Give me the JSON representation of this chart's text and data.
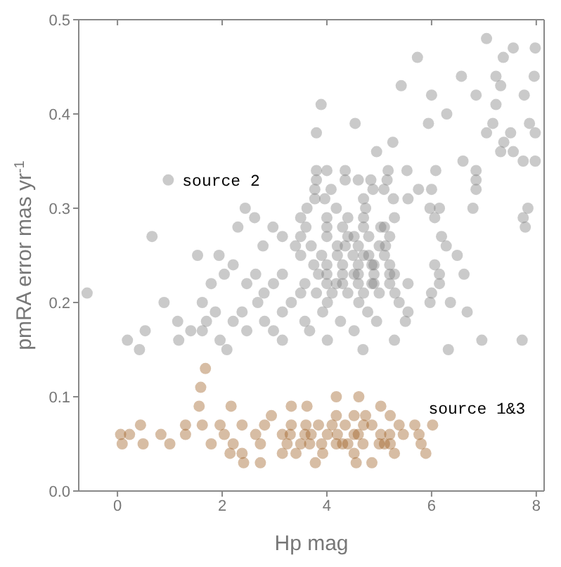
{
  "chart_data": {
    "type": "scatter",
    "xlabel": "Hp mag",
    "ylabel": "pmRA error  mas yr$^{-1}$",
    "xlim": [
      -0.74,
      8.15
    ],
    "xticks": [
      0,
      2,
      4,
      6,
      8
    ],
    "ylim": [
      0,
      0.5
    ],
    "yticks": [
      {
        "value": 0,
        "label": "0.0"
      },
      0.1,
      0.2,
      0.3,
      0.4,
      0.5
    ],
    "marker": "circle",
    "legend": false,
    "series": [
      {
        "name": "source 2",
        "color": "#7a7a7a",
        "x": [
          0.97,
          7.05,
          5.73,
          7.37,
          7.56,
          7.98,
          6.57,
          7.23,
          7.96,
          5.42,
          7.32,
          6.0,
          6.85,
          7.77,
          3.89,
          7.23,
          6.29,
          4.54,
          5.94,
          7.17,
          7.87,
          3.8,
          7.05,
          7.51,
          7.98,
          5.26,
          7.38,
          4.95,
          7.32,
          7.56,
          6.6,
          7.75,
          7.98,
          3.8,
          4.0,
          4.35,
          5.17,
          5.53,
          6.08,
          6.85,
          3.8,
          4.35,
          4.6,
          4.84,
          5.15,
          6.85,
          3.77,
          4.08,
          4.88,
          5.09,
          5.75,
          6.0,
          6.85,
          3.77,
          3.96,
          4.7,
          5.27,
          5.55,
          2.44,
          3.62,
          4.18,
          4.74,
          5.97,
          6.15,
          6.79,
          7.84,
          2.62,
          3.5,
          4.4,
          5.29,
          6.06,
          7.75,
          2.3,
          2.97,
          4.0,
          5.03,
          7.79,
          0.66,
          3.15,
          4.52,
          6.19,
          2.78,
          3.4,
          4.35,
          5.12,
          6.28,
          1.53,
          1.94,
          3.5,
          4.7,
          6.49,
          2.21,
          3.75,
          4.86,
          6.06,
          -0.58,
          2.04,
          2.64,
          3.15,
          3.84,
          4.52,
          5.29,
          6.15,
          6.62,
          1.79,
          2.47,
          2.98,
          3.58,
          4.18,
          4.86,
          5.55,
          6.15,
          0.89,
          1.62,
          2.68,
          3.32,
          4.01,
          4.61,
          5.38,
          5.97,
          6.36,
          1.87,
          2.38,
          3.15,
          3.92,
          4.78,
          5.55,
          6.68,
          1.15,
          1.7,
          2.21,
          2.81,
          3.58,
          4.26,
          4.95,
          5.5,
          0.53,
          1.4,
          1.62,
          2.47,
          2.98,
          3.67,
          4.52,
          0.19,
          1.17,
          1.96,
          3.15,
          4.01,
          5.29,
          6.96,
          7.73,
          0.42,
          2.09,
          4.69,
          6.32,
          3.5,
          3.8,
          4.1,
          4.4,
          4.7,
          5.0,
          5.3,
          2.8,
          6.0,
          4.0,
          4.3,
          4.6,
          4.9,
          5.2,
          4.0,
          4.3,
          4.6,
          4.9,
          5.2,
          4.0,
          4.3,
          4.6,
          4.9,
          5.2,
          3.9,
          4.2,
          4.5,
          4.8,
          5.1,
          3.7,
          4.2,
          4.6,
          5.0,
          3.5,
          4.0,
          4.4,
          4.8,
          5.2,
          3.6,
          4.3,
          4.7,
          5.1,
          4.0,
          4.7
        ],
        "values": [
          0.33,
          0.48,
          0.46,
          0.46,
          0.47,
          0.47,
          0.44,
          0.44,
          0.44,
          0.43,
          0.43,
          0.42,
          0.42,
          0.42,
          0.41,
          0.41,
          0.4,
          0.39,
          0.39,
          0.39,
          0.39,
          0.38,
          0.38,
          0.38,
          0.38,
          0.37,
          0.37,
          0.36,
          0.36,
          0.36,
          0.35,
          0.35,
          0.35,
          0.34,
          0.34,
          0.34,
          0.34,
          0.34,
          0.34,
          0.34,
          0.33,
          0.33,
          0.33,
          0.33,
          0.33,
          0.33,
          0.32,
          0.32,
          0.32,
          0.32,
          0.32,
          0.32,
          0.32,
          0.31,
          0.31,
          0.31,
          0.31,
          0.31,
          0.3,
          0.3,
          0.3,
          0.3,
          0.3,
          0.3,
          0.3,
          0.3,
          0.29,
          0.29,
          0.29,
          0.29,
          0.29,
          0.29,
          0.28,
          0.28,
          0.28,
          0.28,
          0.28,
          0.27,
          0.27,
          0.27,
          0.27,
          0.26,
          0.26,
          0.26,
          0.26,
          0.26,
          0.25,
          0.25,
          0.25,
          0.25,
          0.25,
          0.24,
          0.24,
          0.24,
          0.24,
          0.21,
          0.23,
          0.23,
          0.23,
          0.23,
          0.23,
          0.23,
          0.23,
          0.23,
          0.22,
          0.22,
          0.22,
          0.22,
          0.22,
          0.22,
          0.22,
          0.22,
          0.2,
          0.2,
          0.2,
          0.2,
          0.2,
          0.2,
          0.2,
          0.2,
          0.2,
          0.19,
          0.19,
          0.19,
          0.19,
          0.19,
          0.19,
          0.19,
          0.18,
          0.18,
          0.18,
          0.18,
          0.18,
          0.18,
          0.18,
          0.18,
          0.17,
          0.17,
          0.17,
          0.17,
          0.17,
          0.17,
          0.17,
          0.16,
          0.16,
          0.16,
          0.16,
          0.16,
          0.16,
          0.16,
          0.16,
          0.15,
          0.15,
          0.15,
          0.15,
          0.21,
          0.21,
          0.21,
          0.21,
          0.21,
          0.21,
          0.21,
          0.21,
          0.21,
          0.22,
          0.22,
          0.22,
          0.22,
          0.22,
          0.23,
          0.23,
          0.23,
          0.23,
          0.23,
          0.24,
          0.24,
          0.24,
          0.24,
          0.24,
          0.25,
          0.25,
          0.25,
          0.25,
          0.25,
          0.26,
          0.26,
          0.26,
          0.26,
          0.27,
          0.27,
          0.27,
          0.27,
          0.27,
          0.28,
          0.28,
          0.28,
          0.28,
          0.29,
          0.29
        ]
      },
      {
        "name": "source 1&3",
        "color": "#9c5a1c",
        "x": [
          6.02,
          1.68,
          1.59,
          4.18,
          4.61,
          1.56,
          2.17,
          3.32,
          3.62,
          5.03,
          2.94,
          4.18,
          4.52,
          4.74,
          5.21,
          0.44,
          1.3,
          1.62,
          1.96,
          2.38,
          2.81,
          3.32,
          3.84,
          4.35,
          4.86,
          5.38,
          5.68,
          0.06,
          0.23,
          0.83,
          1.3,
          2.04,
          2.64,
          3.15,
          3.58,
          4.01,
          4.52,
          5.03,
          5.46,
          5.76,
          0.09,
          0.49,
          1.0,
          1.79,
          2.21,
          2.73,
          3.24,
          3.67,
          4.18,
          4.69,
          5.21,
          5.8,
          2.15,
          2.38,
          3.15,
          3.41,
          3.92,
          4.52,
          5.29,
          5.89,
          2.41,
          2.73,
          3.78,
          4.56,
          4.86,
          3.5,
          3.9,
          4.3,
          4.4,
          5.0,
          5.1,
          3.3,
          3.7,
          4.2,
          4.6,
          5.2,
          3.6,
          4.1,
          4.7
        ],
        "values": [
          0.07,
          0.13,
          0.11,
          0.1,
          0.1,
          0.09,
          0.09,
          0.09,
          0.09,
          0.09,
          0.08,
          0.08,
          0.08,
          0.08,
          0.08,
          0.07,
          0.07,
          0.07,
          0.07,
          0.07,
          0.07,
          0.07,
          0.07,
          0.07,
          0.07,
          0.07,
          0.07,
          0.06,
          0.06,
          0.06,
          0.06,
          0.06,
          0.06,
          0.06,
          0.06,
          0.06,
          0.06,
          0.06,
          0.06,
          0.06,
          0.05,
          0.05,
          0.05,
          0.05,
          0.05,
          0.05,
          0.05,
          0.05,
          0.05,
          0.05,
          0.05,
          0.05,
          0.04,
          0.04,
          0.04,
          0.04,
          0.04,
          0.04,
          0.04,
          0.04,
          0.03,
          0.03,
          0.03,
          0.03,
          0.03,
          0.05,
          0.05,
          0.05,
          0.05,
          0.05,
          0.05,
          0.06,
          0.06,
          0.06,
          0.06,
          0.06,
          0.07,
          0.07,
          0.07
        ]
      }
    ]
  }
}
